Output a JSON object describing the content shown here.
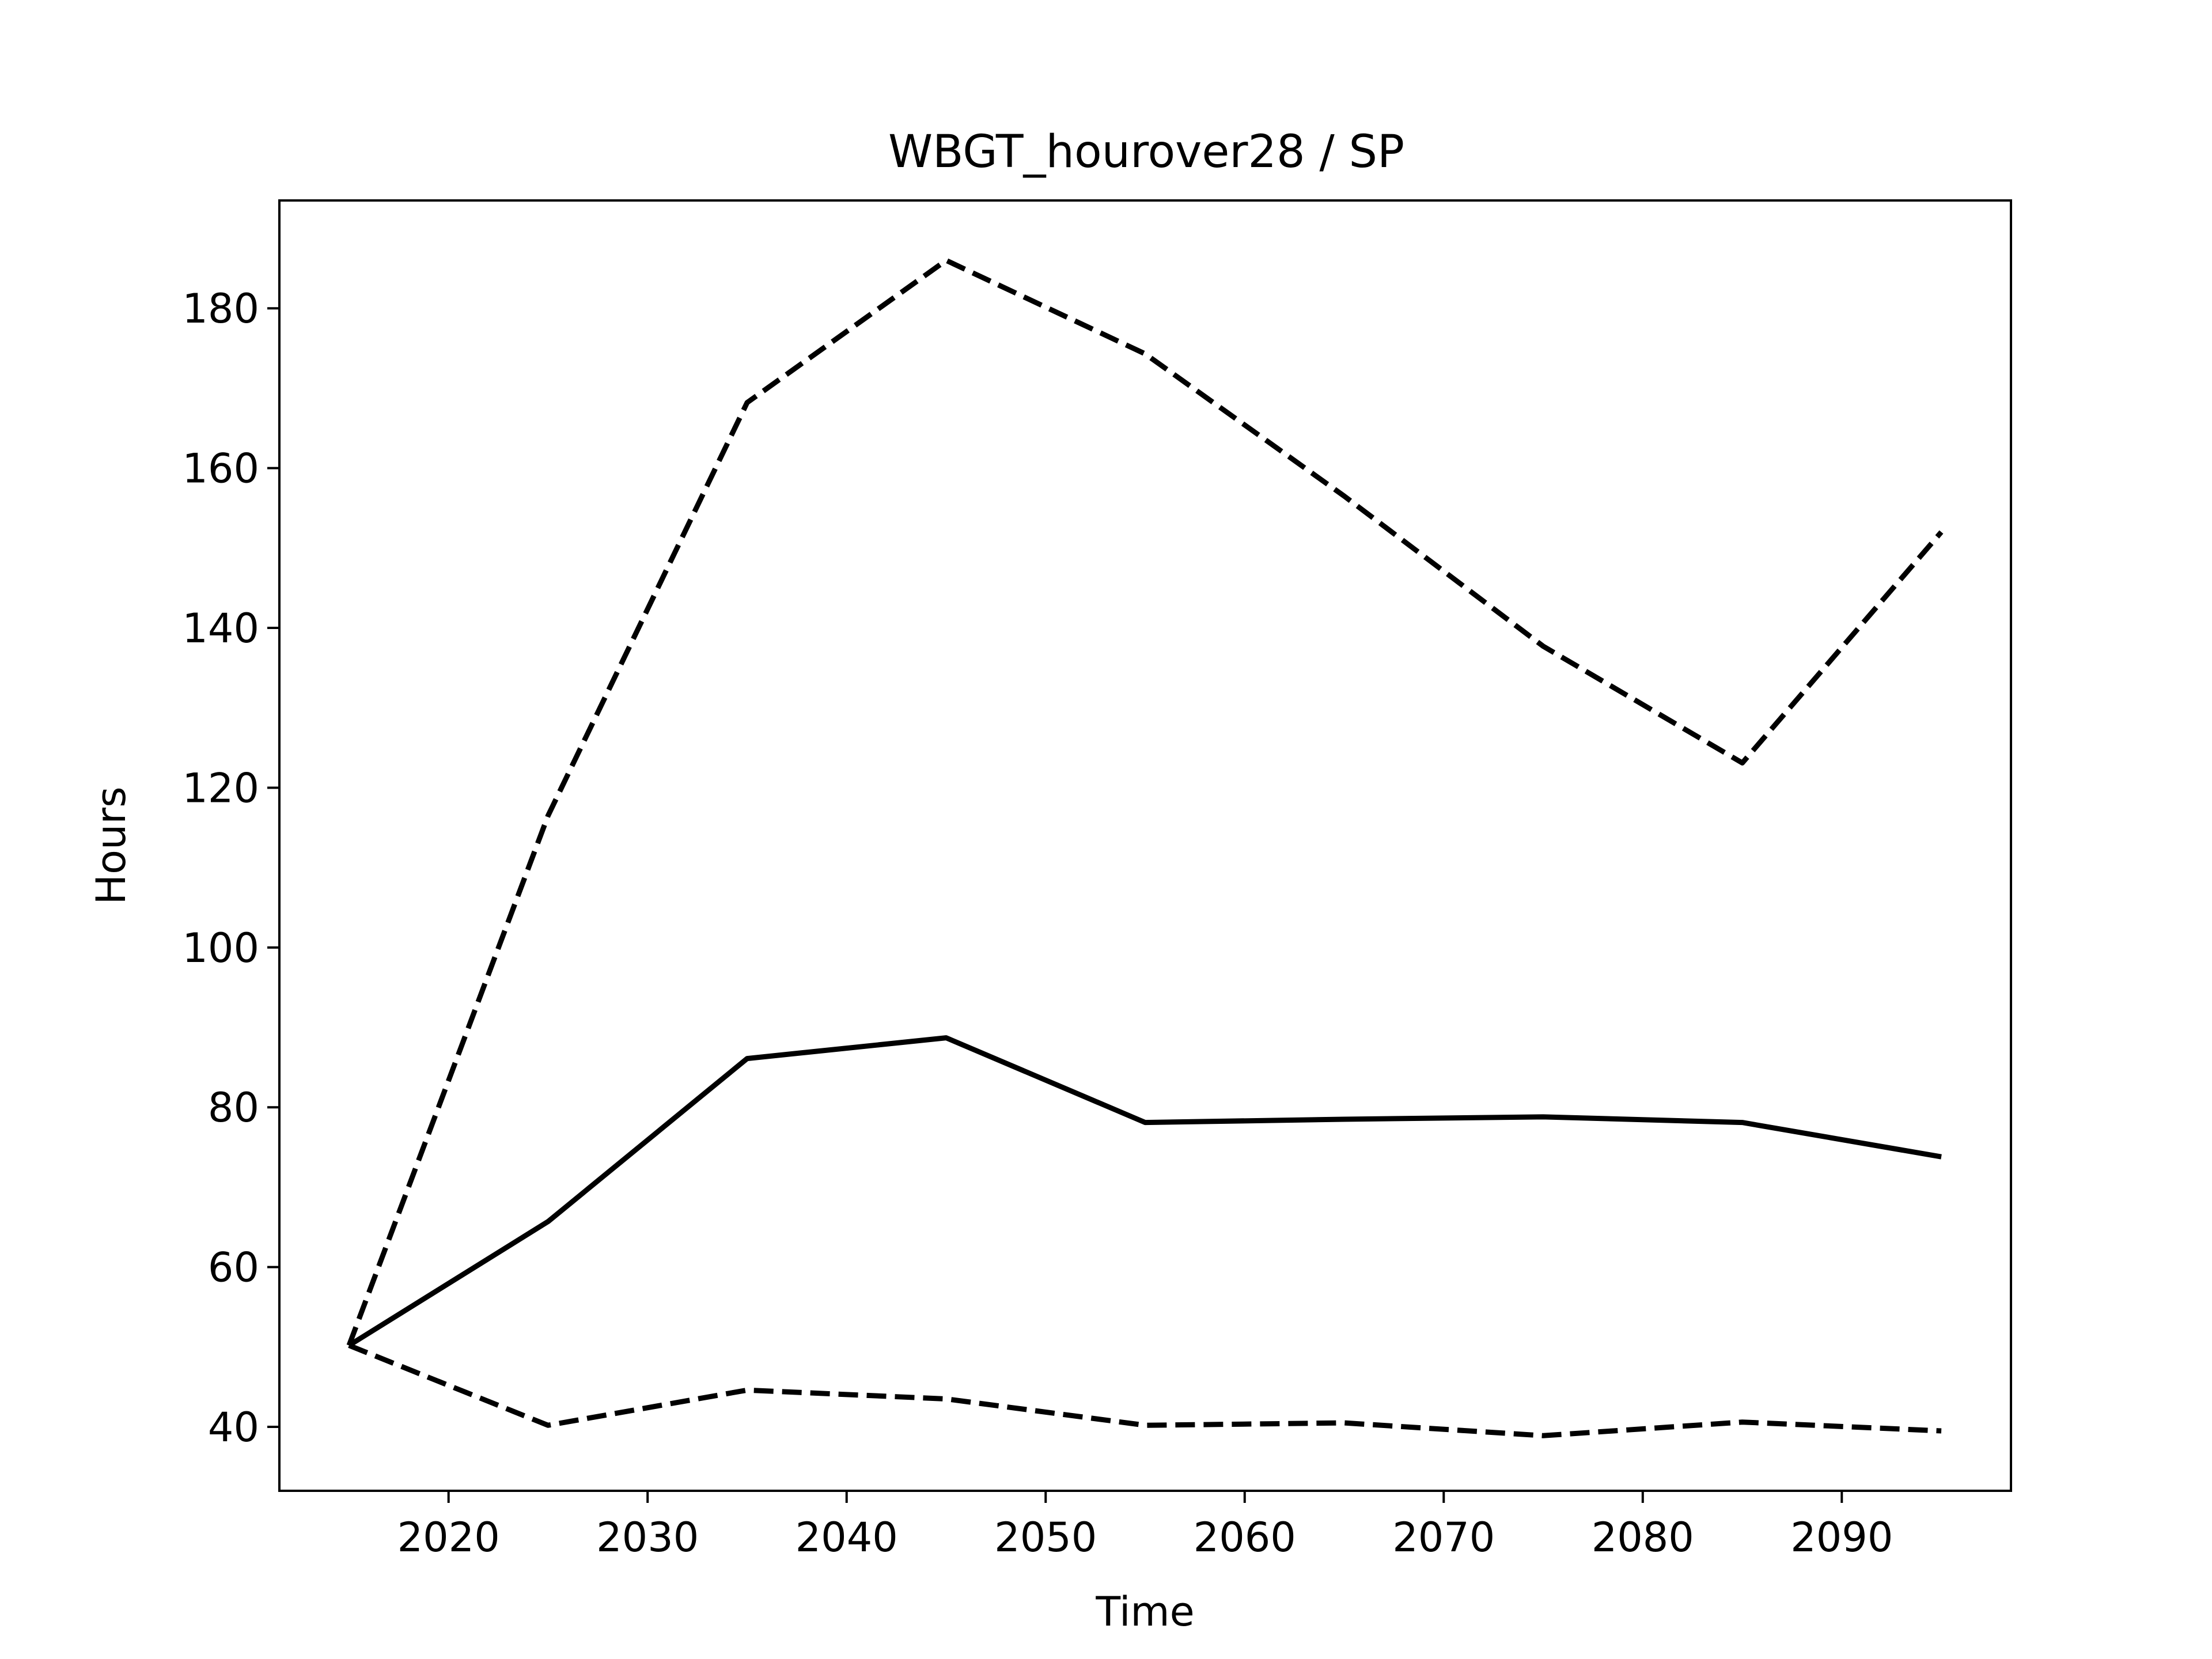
{
  "chart_data": {
    "type": "line",
    "title": "WBGT_hourover28 / SP",
    "xlabel": "Time",
    "ylabel": "Hours",
    "xlim": [
      2011.5,
      2098.5
    ],
    "ylim": [
      32,
      193.5
    ],
    "xticks": [
      2020,
      2030,
      2040,
      2050,
      2060,
      2070,
      2080,
      2090
    ],
    "yticks": [
      40,
      60,
      80,
      100,
      120,
      140,
      160,
      180
    ],
    "grid": false,
    "legend": "none",
    "x": [
      2015,
      2025,
      2035,
      2045,
      2055,
      2065,
      2075,
      2085,
      2095
    ],
    "series": [
      {
        "style": "dashed",
        "color": "#000000",
        "values": [
          50.2,
          116.5,
          168.2,
          186.0,
          174.3,
          156.5,
          137.7,
          123.1,
          152.0
        ]
      },
      {
        "style": "solid",
        "color": "#000000",
        "values": [
          50.2,
          65.7,
          86.1,
          88.7,
          78.1,
          78.5,
          78.8,
          78.1,
          73.8
        ]
      },
      {
        "style": "dashed",
        "color": "#000000",
        "values": [
          50.2,
          40.2,
          44.6,
          43.5,
          40.2,
          40.5,
          38.9,
          40.6,
          39.5
        ]
      }
    ]
  }
}
